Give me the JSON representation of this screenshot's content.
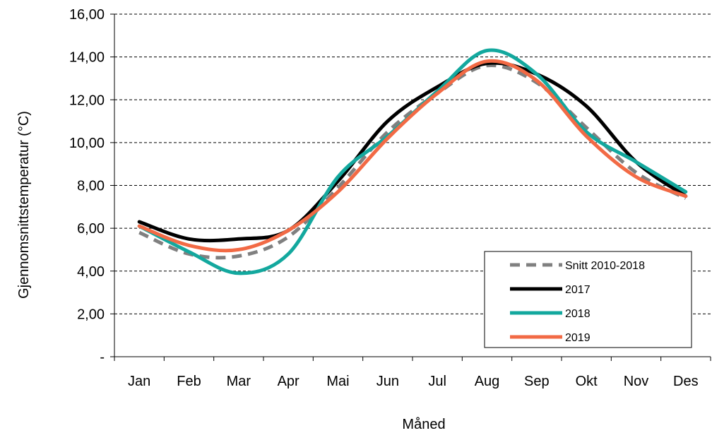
{
  "chart_data": {
    "type": "line",
    "xlabel": "Måned",
    "ylabel": "Gjennomsnittstemperatur  (°C)",
    "categories": [
      "Jan",
      "Feb",
      "Mar",
      "Apr",
      "Mai",
      "Jun",
      "Jul",
      "Aug",
      "Sep",
      "Okt",
      "Nov",
      "Des"
    ],
    "ylim": [
      0,
      16
    ],
    "yticks": [
      0,
      2,
      4,
      6,
      8,
      10,
      12,
      14,
      16
    ],
    "ytick_labels": [
      "-",
      "2,00",
      "4,00",
      "6,00",
      "8,00",
      "10,00",
      "12,00",
      "14,00",
      "16,00"
    ],
    "grid": "horizontal dashed",
    "legend_position": "bottom-right",
    "series": [
      {
        "name": "Snitt 2010-2018",
        "color": "#808080",
        "style": "dashed",
        "values": [
          5.8,
          4.8,
          4.7,
          5.6,
          7.9,
          10.5,
          12.3,
          13.6,
          12.8,
          10.7,
          8.6,
          7.4
        ]
      },
      {
        "name": "2017",
        "color": "#000000",
        "style": "solid",
        "values": [
          6.3,
          5.5,
          5.5,
          5.9,
          8.2,
          11.0,
          12.6,
          13.7,
          13.2,
          11.7,
          9.1,
          7.5
        ]
      },
      {
        "name": "2018",
        "color": "#13A89E",
        "style": "solid",
        "values": [
          6.1,
          4.9,
          3.9,
          4.8,
          8.4,
          10.3,
          12.4,
          14.3,
          13.2,
          10.5,
          9.1,
          7.7
        ]
      },
      {
        "name": "2019",
        "color": "#F26A45",
        "style": "solid",
        "values": [
          6.1,
          5.2,
          5.0,
          5.9,
          7.7,
          10.2,
          12.3,
          13.8,
          12.9,
          10.3,
          8.4,
          7.5
        ]
      }
    ]
  }
}
